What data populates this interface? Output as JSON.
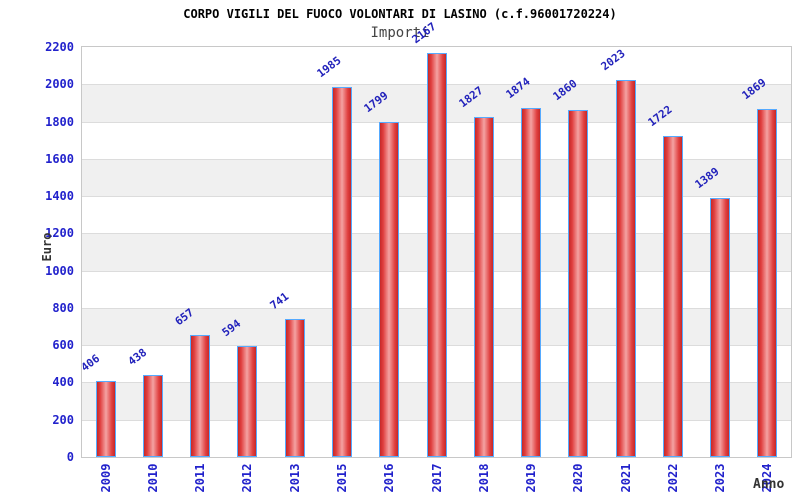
{
  "chart_data": {
    "type": "bar",
    "title": "CORPO VIGILI DEL FUOCO VOLONTARI DI LASINO (c.f.96001720224)",
    "subtitle": "Importi",
    "xlabel": "Anno",
    "ylabel": "Euro",
    "categories": [
      "2009",
      "2010",
      "2011",
      "2012",
      "2013",
      "2015",
      "2016",
      "2017",
      "2018",
      "2019",
      "2020",
      "2021",
      "2022",
      "2023",
      "2024"
    ],
    "values": [
      406,
      438,
      657,
      594,
      741,
      1985,
      1799,
      2167,
      1827,
      1874,
      1860,
      2023,
      1722,
      1389,
      1869
    ],
    "ylim": [
      0,
      2200
    ],
    "ytick_step": 200,
    "yticks": [
      0,
      200,
      400,
      600,
      800,
      1000,
      1200,
      1400,
      1600,
      1800,
      2000,
      2200
    ],
    "grid": true,
    "legend_position": "none",
    "bar_labels_rotated": true,
    "colors": {
      "bar_fill_center": "#f4a2a2",
      "bar_fill_edge": "#c62828",
      "bar_border": "#55aaff",
      "value_label": "#2222bb",
      "tick_label": "#2222cc",
      "band_alt": "#f0f0f0",
      "gridline": "#dcdcdc",
      "plot_border": "#c8c8c8",
      "title": "#000000",
      "subtitle": "#444444",
      "axis_title": "#333333",
      "background": "#ffffff"
    }
  }
}
